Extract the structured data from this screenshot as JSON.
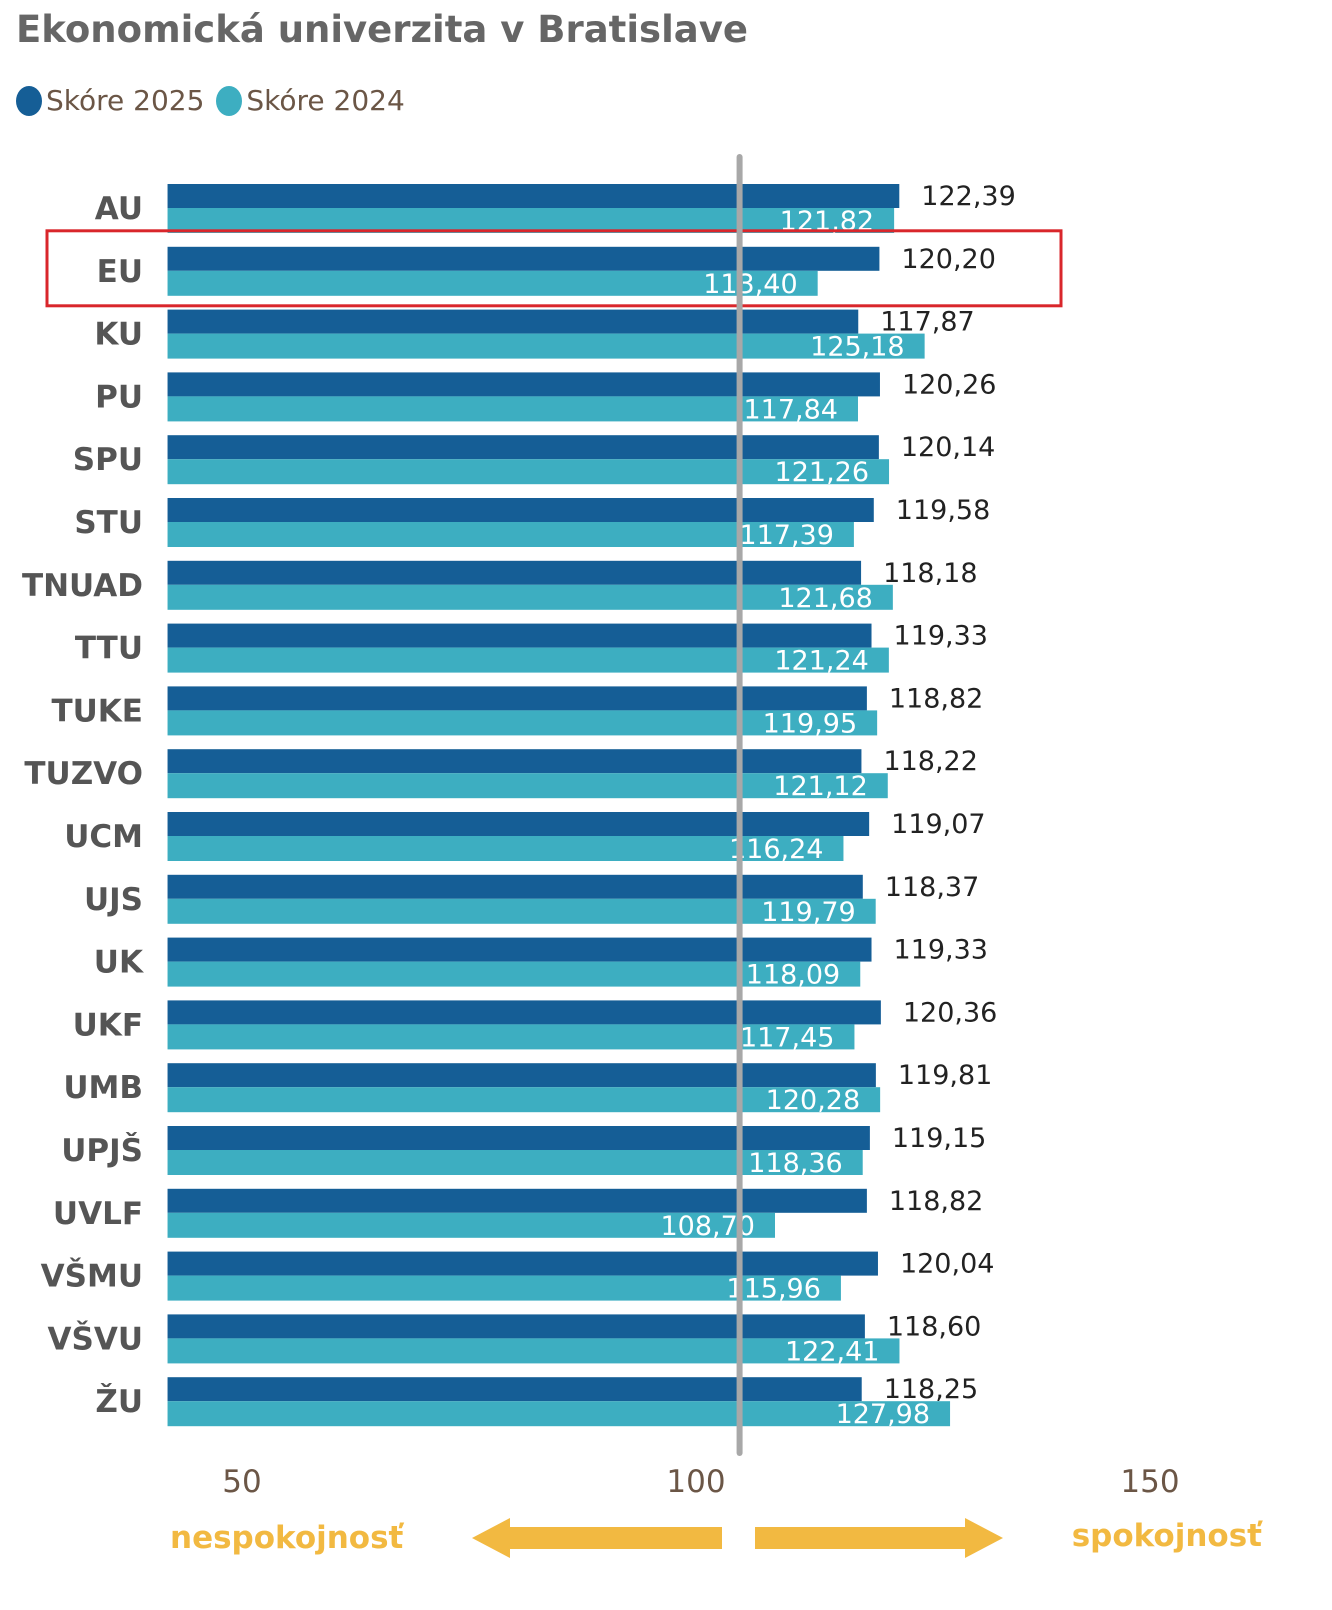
{
  "chart_data": {
    "type": "bar",
    "orientation": "horizontal",
    "title": "Ekonomická univerzita v Bratislave",
    "categories": [
      "AU",
      "EU",
      "KU",
      "PU",
      "SPU",
      "STU",
      "TNUAD",
      "TTU",
      "TUKE",
      "TUZVO",
      "UCM",
      "UJS",
      "UK",
      "UKF",
      "UMB",
      "UPJŠ",
      "UVLF",
      "VŠMU",
      "VŠVU",
      "ŽU"
    ],
    "series": [
      {
        "name": "Skóre 2025",
        "color": "#155e96",
        "values": [
          122.39,
          120.2,
          117.87,
          120.26,
          120.14,
          119.58,
          118.18,
          119.33,
          118.82,
          118.22,
          119.07,
          118.37,
          119.33,
          120.36,
          119.81,
          119.15,
          118.82,
          120.04,
          118.6,
          118.25
        ],
        "labels": [
          "122,39",
          "120,20",
          "117,87",
          "120,26",
          "120,14",
          "119,58",
          "118,18",
          "119,33",
          "118,82",
          "118,22",
          "119,07",
          "118,37",
          "119,33",
          "120,36",
          "119,81",
          "119,15",
          "118,82",
          "120,04",
          "118,60",
          "118,25"
        ]
      },
      {
        "name": "Skóre 2024",
        "color": "#3daec1",
        "values": [
          121.82,
          113.4,
          125.18,
          117.84,
          121.26,
          117.39,
          121.68,
          121.24,
          119.95,
          121.12,
          116.24,
          119.79,
          118.09,
          117.45,
          120.28,
          118.36,
          108.7,
          115.96,
          122.41,
          127.98
        ],
        "labels": [
          "121,82",
          "113,40",
          "125,18",
          "117,84",
          "121,26",
          "117,39",
          "121,68",
          "121,24",
          "119,95",
          "121,12",
          "116,24",
          "119,79",
          "118,09",
          "117,45",
          "120,28",
          "118,36",
          "108,70",
          "115,96",
          "122,41",
          "127,98"
        ]
      }
    ],
    "xticks": [
      "50",
      "100",
      "150"
    ],
    "xtick_values": [
      50,
      100,
      150
    ],
    "xlim": [
      41.8,
      155
    ],
    "reference_line": 104.8,
    "highlighted_category": "EU",
    "highlight_color": "#d9262b",
    "direction_labels": {
      "left": "nespokojnosť",
      "right": "spokojnosť"
    },
    "arrow_color": "#f2b941",
    "legend_position": "top-left"
  }
}
